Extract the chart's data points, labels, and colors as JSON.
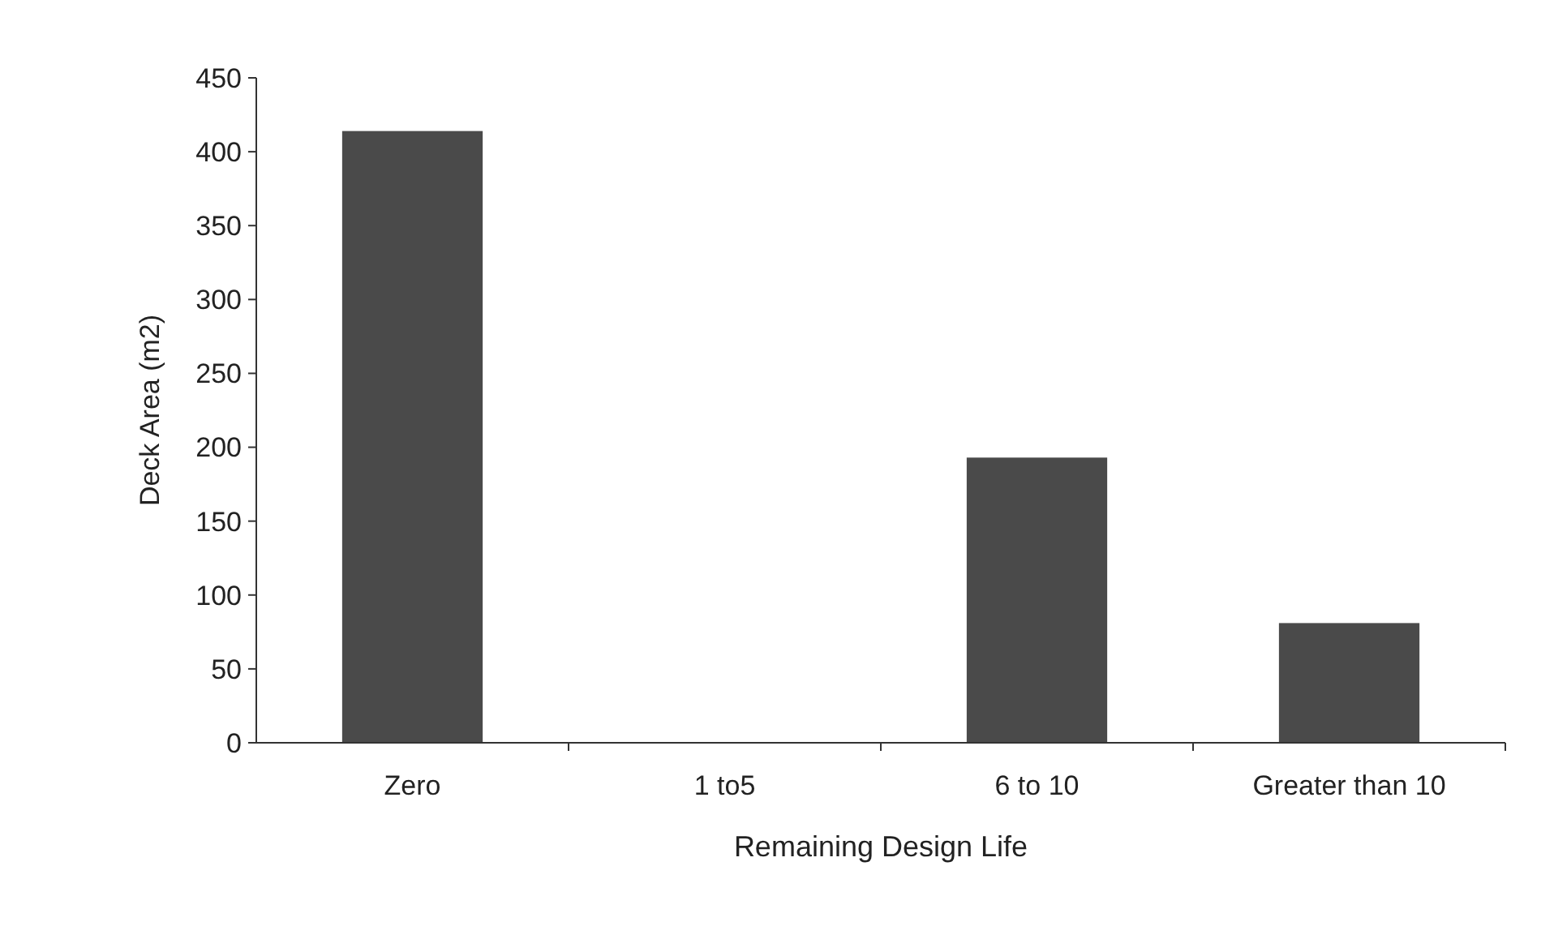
{
  "chart_data": {
    "type": "bar",
    "xlabel": "Remaining Design Life",
    "ylabel": "Deck Area (m2)",
    "categories": [
      "Zero",
      "1 to5",
      "6 to 10",
      "Greater than 10"
    ],
    "values": [
      414,
      0,
      193,
      81
    ],
    "color": "#4a4a4a",
    "ylim": [
      0,
      450
    ],
    "yticks": [
      0,
      50,
      100,
      150,
      200,
      250,
      300,
      350,
      400,
      450
    ],
    "grid": false
  }
}
